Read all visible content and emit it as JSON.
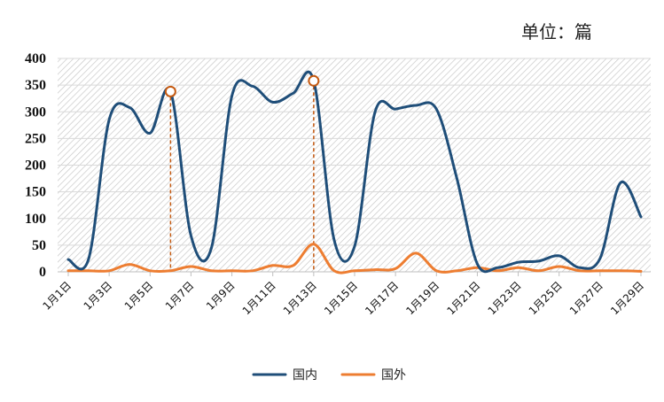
{
  "unit_label": "单位：篇",
  "chart_data": {
    "type": "line",
    "title": "",
    "xlabel": "",
    "ylabel": "",
    "ylim": [
      0,
      400
    ],
    "yticks": [
      0,
      50,
      100,
      150,
      200,
      250,
      300,
      350,
      400
    ],
    "grid": true,
    "legend_position": "bottom",
    "categories": [
      "1月1日",
      "1月2日",
      "1月3日",
      "1月4日",
      "1月5日",
      "1月6日",
      "1月7日",
      "1月8日",
      "1月9日",
      "1月10日",
      "1月11日",
      "1月12日",
      "1月13日",
      "1月14日",
      "1月15日",
      "1月16日",
      "1月17日",
      "1月18日",
      "1月19日",
      "1月20日",
      "1月21日",
      "1月22日",
      "1月23日",
      "1月24日",
      "1月25日",
      "1月26日",
      "1月27日",
      "1月28日",
      "1月29日"
    ],
    "tick_labels": [
      "1月1日",
      "1月3日",
      "1月5日",
      "1月7日",
      "1月9日",
      "1月11日",
      "1月13日",
      "1月15日",
      "1月17日",
      "1月19日",
      "1月21日",
      "1月23日",
      "1月25日",
      "1月27日",
      "1月29日"
    ],
    "series": [
      {
        "name": "国内",
        "color": "#1f4e79",
        "values": [
          23,
          25,
          285,
          308,
          260,
          338,
          68,
          45,
          330,
          348,
          318,
          335,
          358,
          60,
          48,
          300,
          305,
          312,
          305,
          175,
          15,
          8,
          18,
          20,
          30,
          8,
          25,
          167,
          103
        ]
      },
      {
        "name": "国外",
        "color": "#ed7d31",
        "values": [
          2,
          2,
          2,
          14,
          2,
          2,
          10,
          2,
          2,
          2,
          12,
          12,
          52,
          2,
          2,
          4,
          6,
          35,
          2,
          2,
          8,
          2,
          8,
          2,
          10,
          2,
          2,
          2,
          1
        ]
      }
    ],
    "highlight_markers": [
      {
        "category": "1月6日",
        "value": 338
      },
      {
        "category": "1月13日",
        "value": 358
      }
    ]
  }
}
